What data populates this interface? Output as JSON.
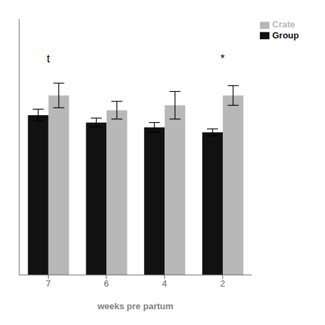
{
  "chart_data": {
    "type": "bar",
    "xlabel": "weeks pre partum",
    "categories": [
      "7",
      "6",
      "4",
      "2"
    ],
    "series": [
      {
        "name": "Group",
        "color": "#111111",
        "values": [
          32.5,
          31.0,
          30.0,
          29.0
        ],
        "errors": [
          1.2,
          0.9,
          1.0,
          0.7
        ]
      },
      {
        "name": "Crate",
        "color": "#b8b8b8",
        "values": [
          36.5,
          33.5,
          34.5,
          36.5
        ],
        "errors": [
          2.5,
          1.8,
          2.8,
          2.0
        ]
      }
    ],
    "ylim": [
      0,
      52
    ],
    "annotations": [
      {
        "text": "t",
        "category": "7",
        "y": 44
      },
      {
        "text": "*",
        "category": "2",
        "y": 44
      }
    ],
    "legend": "upper right",
    "tick_labels": "x",
    "grid": false
  }
}
